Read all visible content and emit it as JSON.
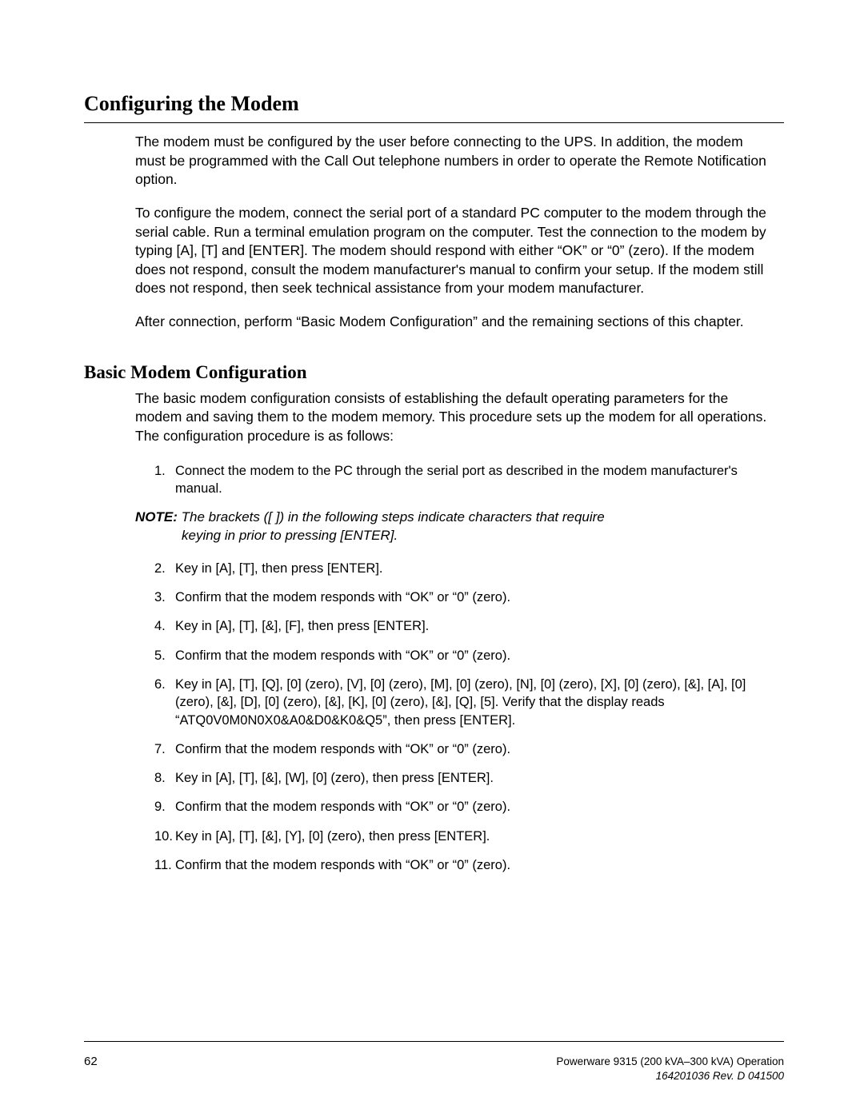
{
  "title": "Configuring the Modem",
  "intro": {
    "p1": "The modem must be configured by the user before connecting to the UPS.  In addition, the modem must be programmed with the Call Out telephone numbers in order to operate the Remote Notification option.",
    "p2": "To configure the modem, connect the serial port of a standard PC computer to the modem through the serial cable.  Run a terminal emulation program on the computer.  Test the connection to the modem by typing [A], [T] and [ENTER]. The modem should respond with either “OK” or “0” (zero).  If the modem does not respond, consult the modem manufacturer's manual to confirm your setup.  If the modem still does not respond, then seek technical assistance from your modem manufacturer.",
    "p3": "After connection, perform “Basic Modem Configuration” and the remaining sections of this chapter."
  },
  "section": {
    "heading": "Basic Modem Configuration",
    "lead": "The basic modem configuration consists of establishing the default operating parameters for the modem and saving them to the modem memory.  This procedure sets up the modem for all operations.  The configuration procedure is as follows:",
    "step1": "Connect the modem to the PC through the serial port as described in the modem manufacturer's manual.",
    "note_label": "NOTE:",
    "note_text_line1": "The brackets ([ ]) in the following steps indicate characters that require",
    "note_text_line2": "keying in prior to pressing [ENTER].",
    "step2": "Key in [A], [T], then press [ENTER].",
    "step3": "Confirm that the modem responds with “OK” or “0” (zero).",
    "step4": "Key in [A], [T], [&], [F], then press [ENTER].",
    "step5": "Confirm that the modem responds with “OK” or “0” (zero).",
    "step6": "Key in [A], [T], [Q], [0] (zero), [V], [0] (zero), [M], [0] (zero), [N], [0] (zero), [X], [0] (zero), [&], [A], [0] (zero), [&], [D], [0] (zero), [&], [K], [0] (zero), [&], [Q], [5]. Verify that the display reads “ATQ0V0M0N0X0&A0&D0&K0&Q5”, then press [ENTER].",
    "step7": "Confirm that the modem responds with “OK” or “0” (zero).",
    "step8": "Key in [A], [T], [&], [W], [0] (zero), then press [ENTER].",
    "step9": "Confirm that the modem responds with “OK” or “0” (zero).",
    "step10": "Key in [A], [T], [&], [Y], [0] (zero), then press [ENTER].",
    "step11": "Confirm that the modem responds with “OK” or “0” (zero)."
  },
  "footer": {
    "page": "62",
    "right1": "Powerware 9315 (200 kVA–300 kVA) Operation",
    "right2": "164201036  Rev. D  041500"
  }
}
